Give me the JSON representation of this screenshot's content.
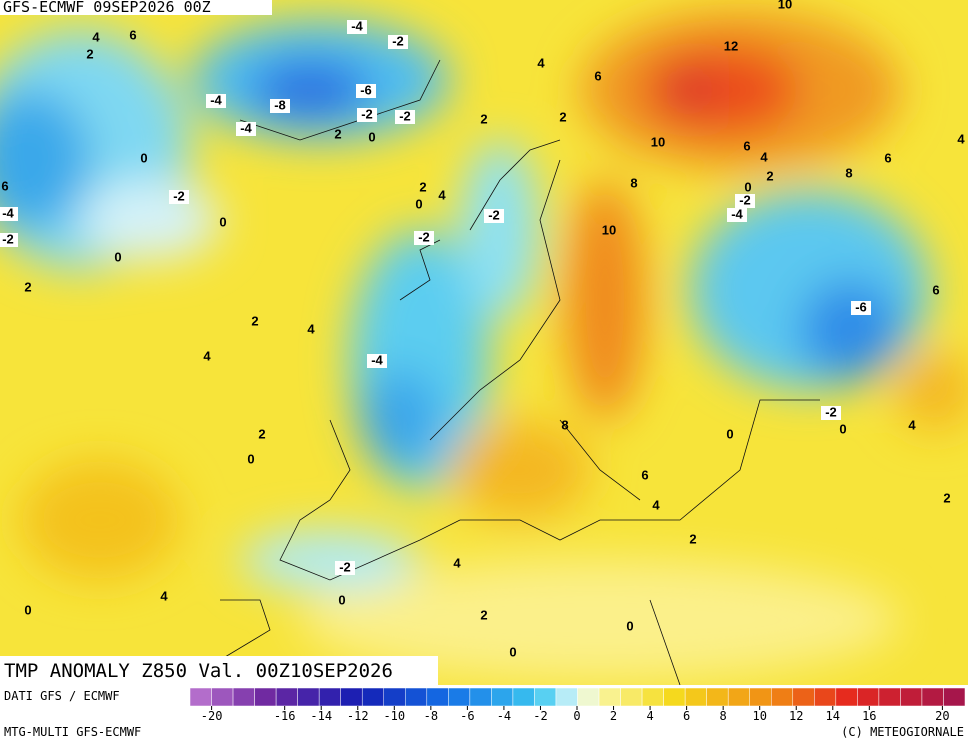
{
  "header": {
    "title": "GFS-ECMWF 09SEP2026 00Z"
  },
  "map": {
    "caption": "TMP ANOMALY Z850 Val. 00Z10SEP2026",
    "contour_labels": [
      4,
      6,
      2,
      -4,
      -2,
      -4,
      -8,
      -6,
      -2,
      -2,
      -4,
      2,
      0,
      0,
      2,
      2,
      4,
      6,
      12,
      10,
      10,
      6,
      4,
      2,
      8,
      6,
      4,
      6,
      -4,
      -2,
      -2,
      0,
      0,
      2,
      2,
      4,
      0,
      -2,
      -2,
      8,
      10,
      0,
      -2,
      -4,
      -6,
      6,
      2,
      4,
      4,
      -4,
      -2,
      0,
      4,
      0,
      2,
      0,
      8,
      6,
      4,
      2,
      2,
      4,
      -2,
      4,
      0,
      0,
      2,
      0,
      0
    ]
  },
  "footer": {
    "source": "DATI GFS / ECMWF",
    "model": "MTG-MULTI GFS-ECMWF",
    "copyright": "(C) METEOGIORNALE",
    "scale": {
      "labels": [
        -20,
        -16,
        -14,
        -12,
        -10,
        -8,
        -6,
        -4,
        -2,
        0,
        2,
        4,
        6,
        8,
        10,
        12,
        14,
        16,
        20
      ]
    }
  }
}
